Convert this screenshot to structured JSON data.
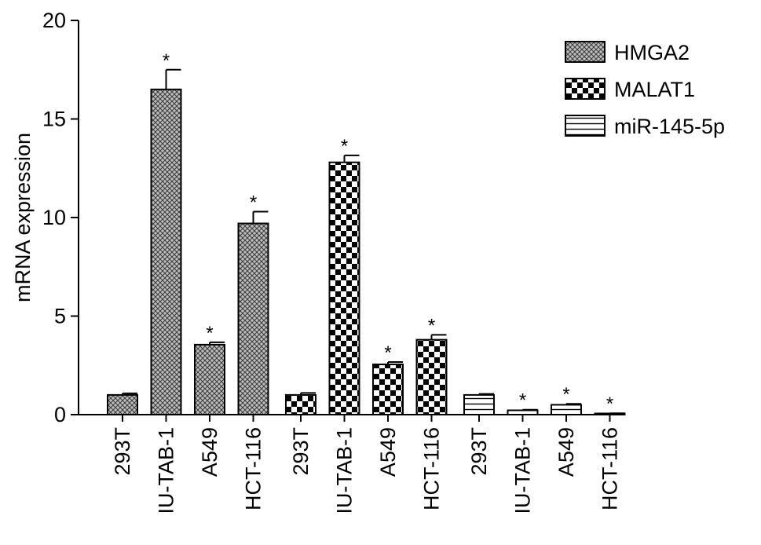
{
  "chart_data": {
    "type": "bar",
    "title": "",
    "xlabel": "",
    "ylabel": "mRNA expression",
    "ylim": [
      0,
      20
    ],
    "yticks": [
      0,
      5,
      10,
      15,
      20
    ],
    "grid": false,
    "legend_position": "top-right",
    "categories": [
      "293T",
      "IU-TAB-1",
      "A549",
      "HCT-116"
    ],
    "series": [
      {
        "name": "HMGA2",
        "pattern": "fine-crosshatch",
        "values": [
          1.0,
          16.5,
          3.55,
          9.7
        ],
        "errors": [
          0.08,
          1.0,
          0.12,
          0.6
        ],
        "annotations": [
          "",
          "*",
          "*",
          "*"
        ]
      },
      {
        "name": "MALAT1",
        "pattern": "checkerboard",
        "values": [
          1.0,
          12.8,
          2.55,
          3.8
        ],
        "errors": [
          0.1,
          0.35,
          0.12,
          0.25
        ],
        "annotations": [
          "",
          "*",
          "*",
          "*"
        ]
      },
      {
        "name": "miR-145-5p",
        "pattern": "horizontal-stripes",
        "values": [
          1.0,
          0.22,
          0.5,
          0.05
        ],
        "errors": [
          0.05,
          0.03,
          0.05,
          0.02
        ],
        "annotations": [
          "",
          "*",
          "*",
          "*"
        ]
      }
    ]
  }
}
